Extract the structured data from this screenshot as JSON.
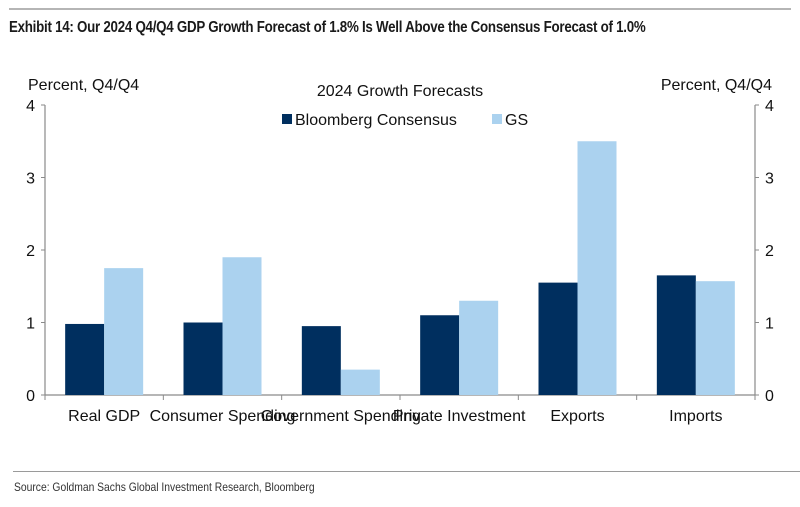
{
  "exhibit_title": "Exhibit 14: Our 2024 Q4/Q4 GDP Growth Forecast of 1.8% Is Well Above the Consensus Forecast of 1.0%",
  "source": "Source: Goldman Sachs Global Investment Research, Bloomberg",
  "chart_data": {
    "type": "bar",
    "title": "2024 Growth Forecasts",
    "xlabel": "",
    "ylabel": "Percent, Q4/Q4",
    "ylabel_right": "Percent, Q4/Q4",
    "ylim": [
      0,
      4
    ],
    "yticks": [
      "0",
      "1",
      "2",
      "3",
      "4"
    ],
    "grid": false,
    "legend_position": "top-center",
    "categories": [
      "Real GDP",
      "Consumer Spending",
      "Government Spending",
      "Private Investment",
      "Exports",
      "Imports"
    ],
    "series": [
      {
        "name": "Bloomberg Consensus",
        "color": "#002f5f",
        "values": [
          0.98,
          1.0,
          0.95,
          1.1,
          1.55,
          1.65
        ]
      },
      {
        "name": "GS",
        "color": "#abd2ef",
        "values": [
          1.75,
          1.9,
          0.35,
          1.3,
          3.5,
          1.57
        ]
      }
    ]
  }
}
